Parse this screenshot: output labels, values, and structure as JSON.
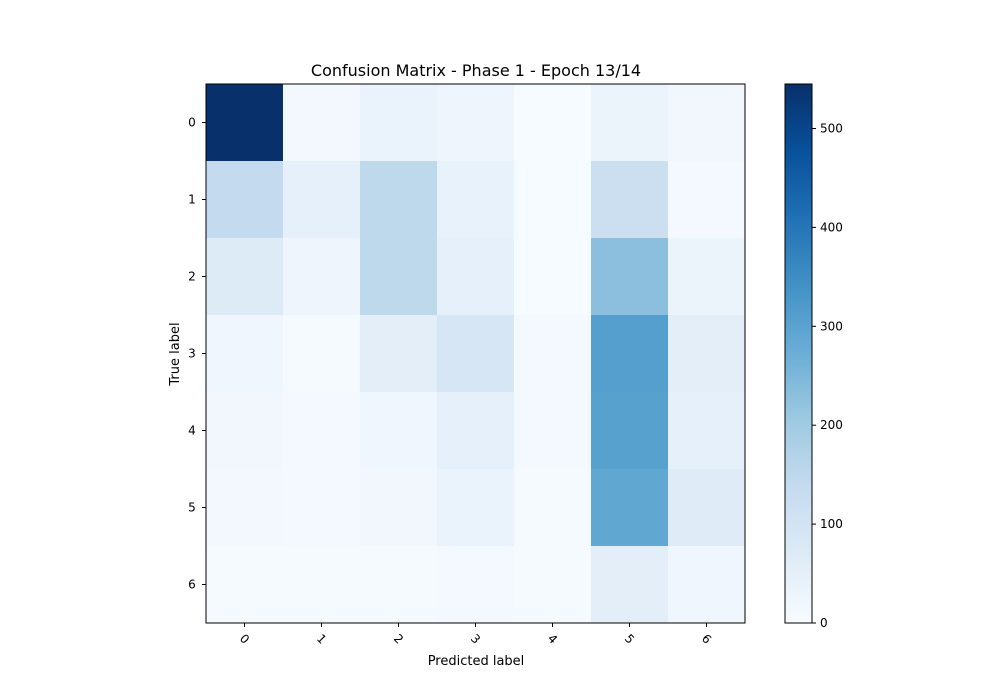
{
  "chart_data": {
    "type": "heatmap",
    "title": "Confusion Matrix - Phase 1 - Epoch 13/14",
    "xlabel": "Predicted label",
    "ylabel": "True label",
    "x_categories": [
      "0",
      "1",
      "2",
      "3",
      "4",
      "5",
      "6"
    ],
    "y_categories": [
      "0",
      "1",
      "2",
      "3",
      "4",
      "5",
      "6"
    ],
    "values": [
      [
        545,
        12,
        35,
        25,
        2,
        30,
        15
      ],
      [
        140,
        45,
        150,
        40,
        2,
        120,
        10
      ],
      [
        70,
        25,
        150,
        45,
        2,
        230,
        30
      ],
      [
        20,
        5,
        55,
        90,
        10,
        310,
        55
      ],
      [
        15,
        10,
        20,
        45,
        10,
        305,
        45
      ],
      [
        12,
        10,
        15,
        35,
        5,
        290,
        65
      ],
      [
        5,
        5,
        5,
        10,
        5,
        55,
        20
      ]
    ],
    "colorbar": {
      "min": 0,
      "max": 545,
      "ticks": [
        "0",
        "100",
        "200",
        "300",
        "400",
        "500"
      ],
      "colormap": "Blues"
    },
    "grid": false
  }
}
